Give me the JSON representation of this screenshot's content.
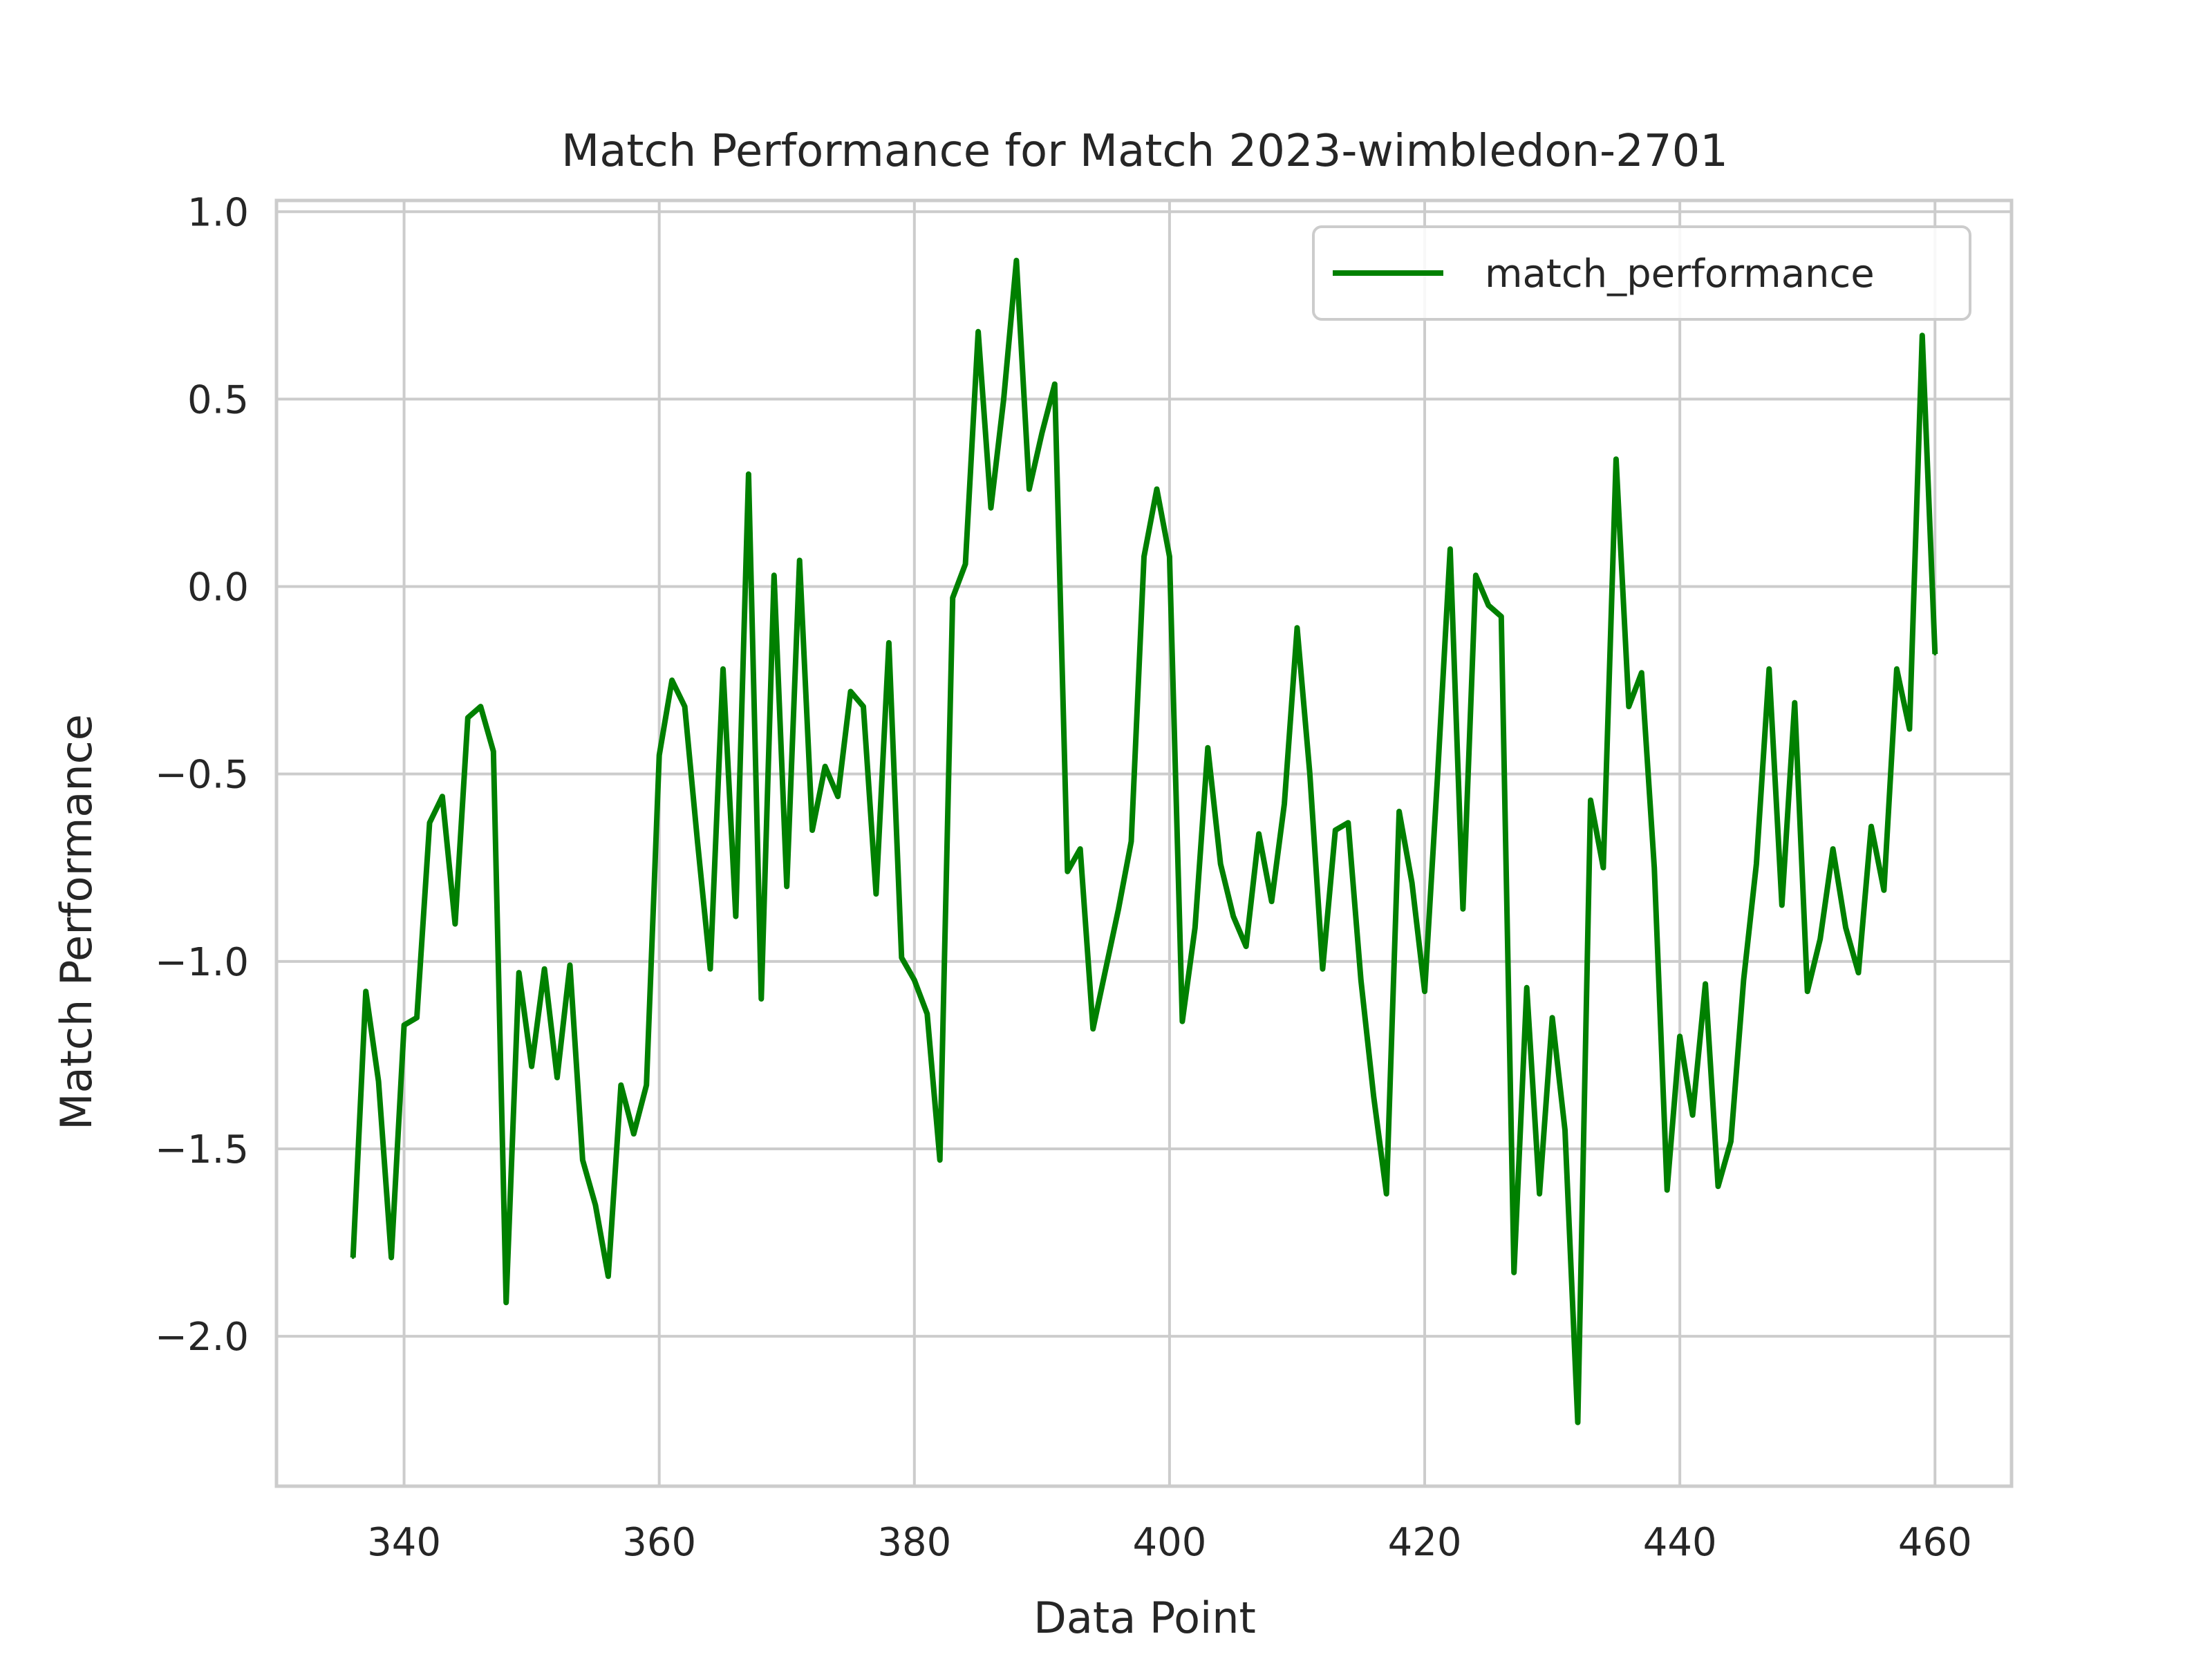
{
  "chart_data": {
    "type": "line",
    "title": "Match Performance for Match 2023-wimbledon-2701",
    "xlabel": "Data Point",
    "ylabel": "Match Performance",
    "xlim": [
      330,
      466
    ],
    "ylim": [
      -2.4,
      1.03
    ],
    "xticks": [
      340,
      360,
      380,
      400,
      420,
      440,
      460
    ],
    "yticks": [
      1.0,
      0.5,
      0.0,
      -0.5,
      -1.0,
      -1.5,
      -2.0
    ],
    "xtick_labels": [
      "340",
      "360",
      "380",
      "400",
      "420",
      "440",
      "460"
    ],
    "ytick_labels": [
      "1.0",
      "0.5",
      "0.0",
      "−0.5",
      "−1.0",
      "−1.5",
      "−2.0"
    ],
    "grid": true,
    "legend_position": "top-right",
    "colors": {
      "line": "#008000",
      "grid": "#cccccc",
      "text": "#262626"
    },
    "series": [
      {
        "name": "match_performance",
        "x": [
          336,
          337,
          338,
          339,
          340,
          341,
          342,
          343,
          344,
          345,
          346,
          347,
          348,
          349,
          350,
          351,
          352,
          353,
          354,
          355,
          356,
          357,
          358,
          359,
          360,
          361,
          362,
          363,
          364,
          365,
          366,
          367,
          368,
          369,
          370,
          371,
          372,
          373,
          374,
          375,
          376,
          377,
          378,
          379,
          380,
          381,
          382,
          383,
          384,
          385,
          386,
          387,
          388,
          389,
          390,
          391,
          392,
          393,
          394,
          395,
          396,
          397,
          398,
          399,
          400,
          401,
          402,
          403,
          404,
          405,
          406,
          407,
          408,
          409,
          410,
          411,
          412,
          413,
          414,
          415,
          416,
          417,
          418,
          419,
          420,
          421,
          422,
          423,
          424,
          425,
          426,
          427,
          428,
          429,
          430,
          431,
          432,
          433,
          434,
          435,
          436,
          437,
          438,
          439,
          440,
          441,
          442,
          443,
          444,
          445,
          446,
          447,
          448,
          449,
          450,
          451,
          452,
          453,
          454,
          455,
          456,
          457,
          458,
          459,
          460
        ],
        "values": [
          -1.79,
          -1.08,
          -1.32,
          -1.79,
          -1.17,
          -1.15,
          -0.63,
          -0.56,
          -0.9,
          -0.35,
          -0.32,
          -0.44,
          -1.91,
          -1.03,
          -1.28,
          -1.02,
          -1.31,
          -1.01,
          -1.53,
          -1.65,
          -1.84,
          -1.33,
          -1.46,
          -1.33,
          -0.45,
          -0.25,
          -0.32,
          -0.68,
          -1.02,
          -0.22,
          -0.88,
          0.3,
          -1.1,
          0.03,
          -0.8,
          0.07,
          -0.65,
          -0.48,
          -0.56,
          -0.28,
          -0.32,
          -0.82,
          -0.15,
          -0.99,
          -1.05,
          -1.14,
          -1.53,
          -0.03,
          0.06,
          0.68,
          0.21,
          0.5,
          0.87,
          0.26,
          0.41,
          0.54,
          -0.76,
          -0.7,
          -1.18,
          -1.02,
          -0.86,
          -0.68,
          0.08,
          0.26,
          0.08,
          -1.16,
          -0.91,
          -0.43,
          -0.74,
          -0.88,
          -0.96,
          -0.66,
          -0.84,
          -0.58,
          -0.11,
          -0.5,
          -1.02,
          -0.65,
          -0.63,
          -1.05,
          -1.36,
          -1.62,
          -0.6,
          -0.79,
          -1.08,
          -0.51,
          0.1,
          -0.86,
          0.03,
          -0.05,
          -0.08,
          -1.83,
          -1.07,
          -1.62,
          -1.15,
          -1.45,
          -2.23,
          -0.57,
          -0.75,
          0.34,
          -0.32,
          -0.23,
          -0.75,
          -1.61,
          -1.2,
          -1.41,
          -1.06,
          -1.6,
          -1.48,
          -1.05,
          -0.74,
          -0.22,
          -0.85,
          -0.31,
          -1.08,
          -0.94,
          -0.7,
          -0.91,
          -1.03,
          -0.64,
          -0.81,
          -0.22,
          -0.38,
          0.67,
          -0.18
        ]
      }
    ]
  }
}
